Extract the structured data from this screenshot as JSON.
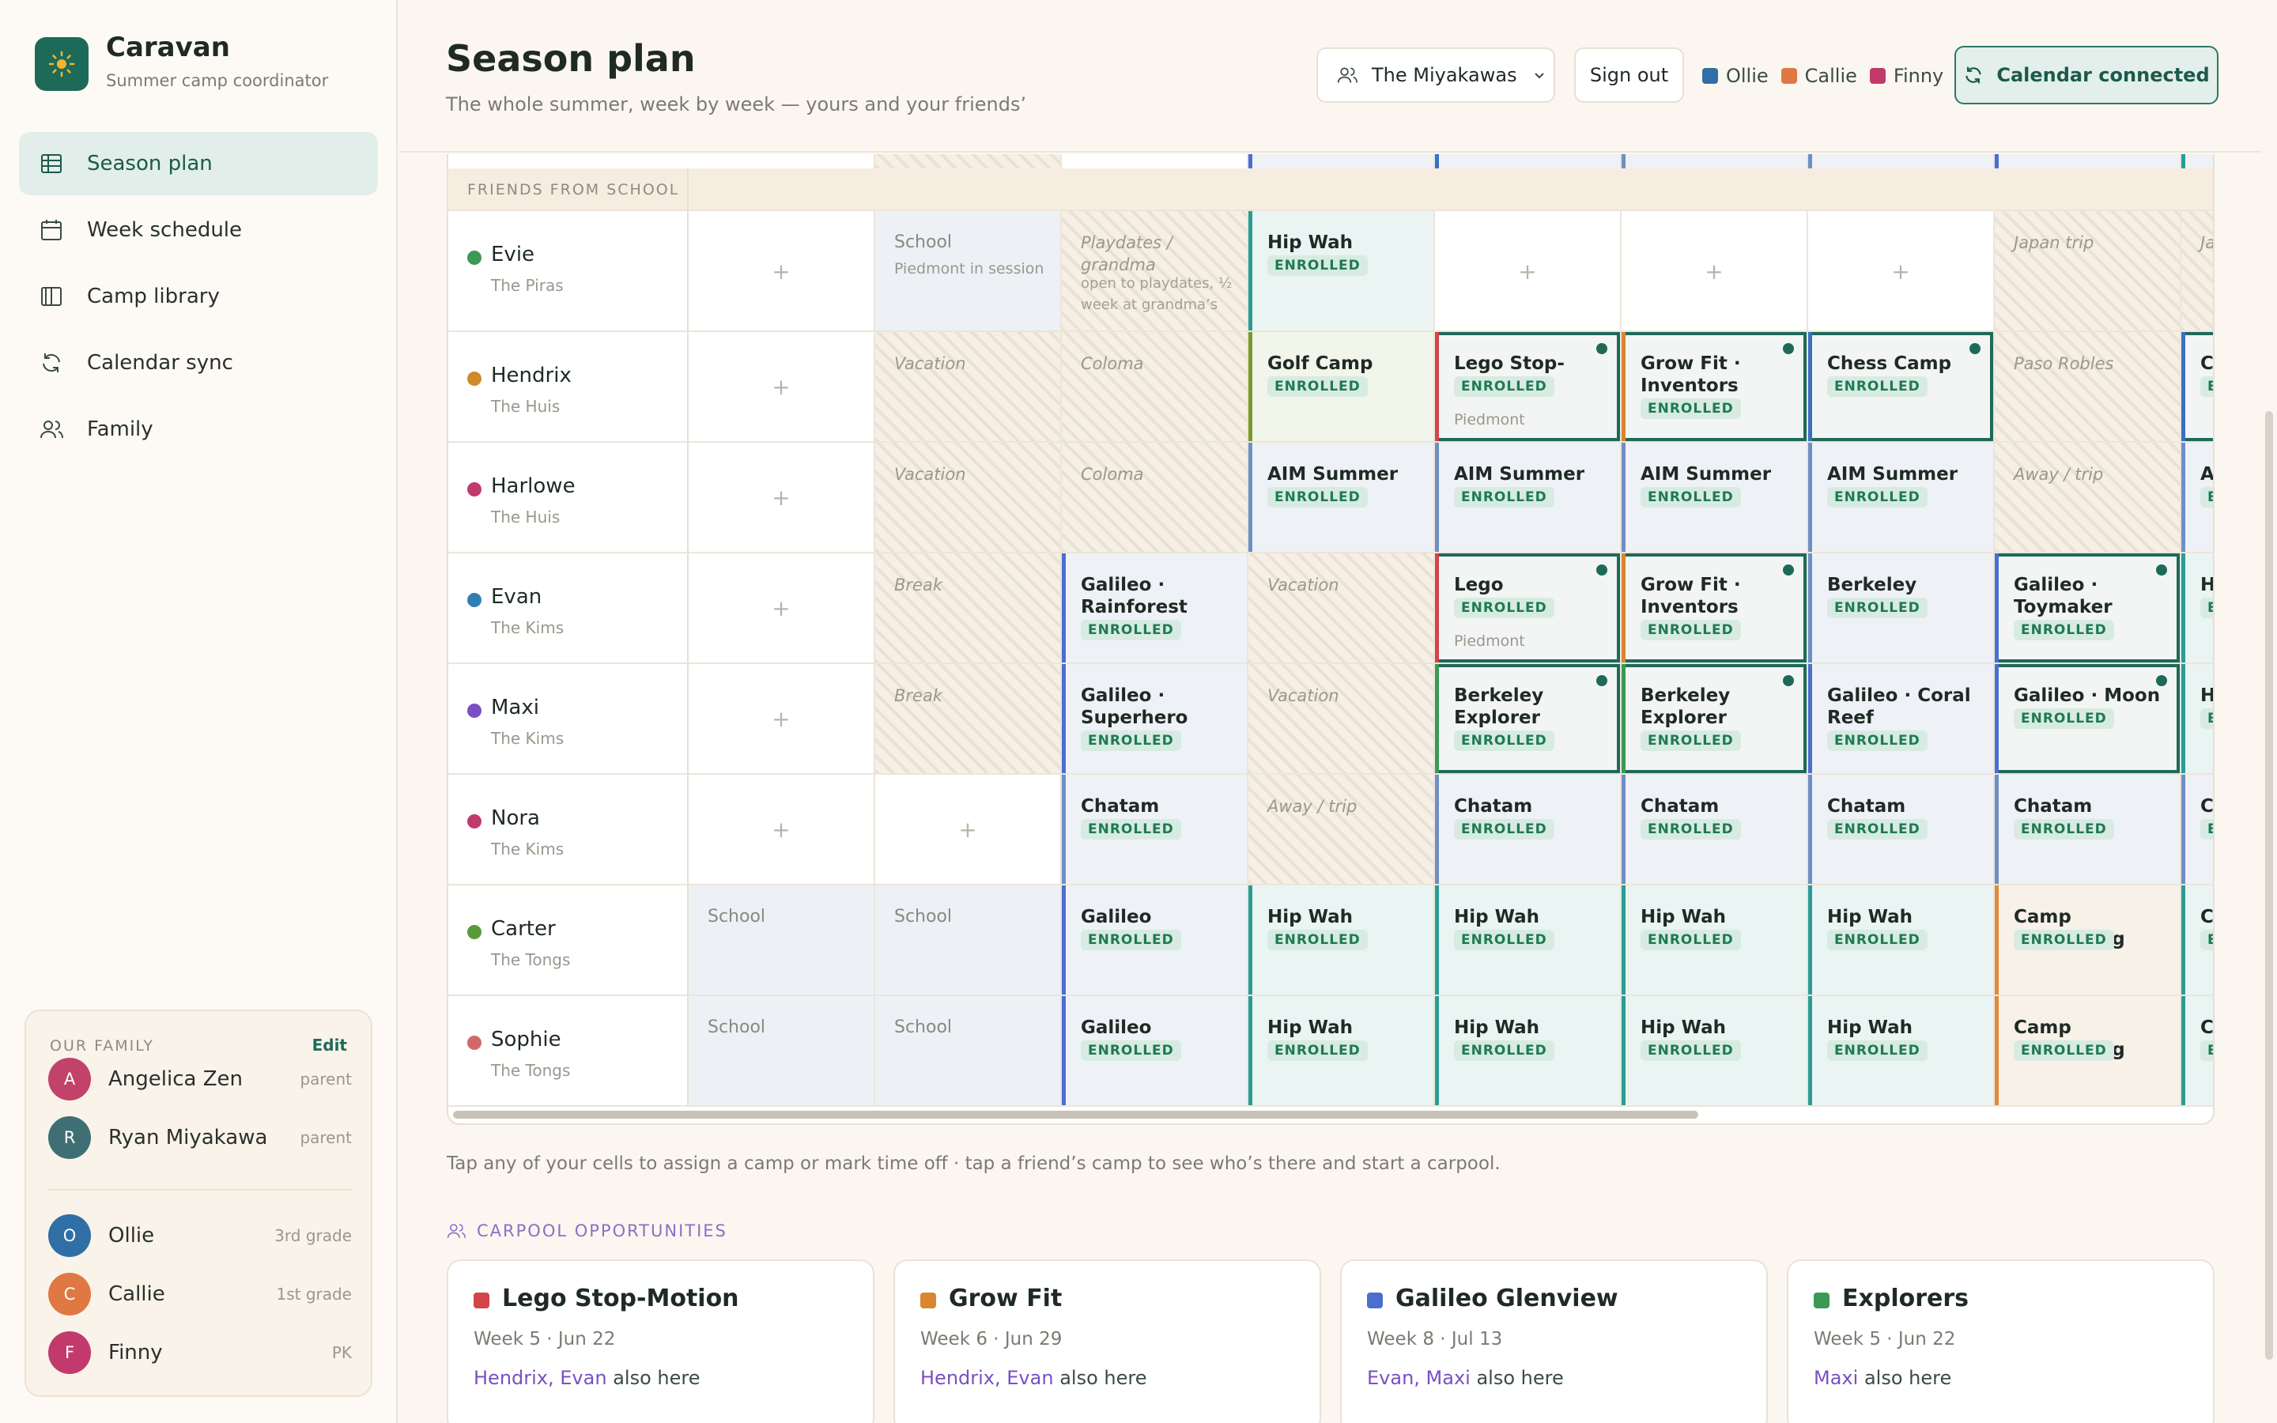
{
  "app": {
    "name": "Caravan",
    "subtitle": "Summer camp coordinator"
  },
  "nav": [
    {
      "label": "Season plan",
      "icon": "grid-icon",
      "active": true
    },
    {
      "label": "Week schedule",
      "icon": "calendar-icon",
      "active": false
    },
    {
      "label": "Camp library",
      "icon": "book-icon",
      "active": false
    },
    {
      "label": "Calendar sync",
      "icon": "sync-icon",
      "active": false
    },
    {
      "label": "Family",
      "icon": "users-icon",
      "active": false
    }
  ],
  "family": {
    "title": "OUR FAMILY",
    "edit_label": "Edit",
    "parents": [
      {
        "initial": "A",
        "name": "Angelica Zen",
        "role": "parent",
        "color": "#c2426a"
      },
      {
        "initial": "R",
        "name": "Ryan Miyakawa",
        "role": "parent",
        "color": "#3f6f74"
      }
    ],
    "kids": [
      {
        "initial": "O",
        "name": "Ollie",
        "role": "3rd grade",
        "color": "#2f6fa6"
      },
      {
        "initial": "C",
        "name": "Callie",
        "role": "1st grade",
        "color": "#e07843"
      },
      {
        "initial": "F",
        "name": "Finny",
        "role": "PK",
        "color": "#c23a6c"
      }
    ]
  },
  "header": {
    "title": "Season plan",
    "subtitle": "The whole summer, week by week — yours and your friends’",
    "family_select": "The Miyakawas",
    "sign_out": "Sign out",
    "legend": [
      {
        "name": "Ollie",
        "color": "#2f6fa6"
      },
      {
        "name": "Callie",
        "color": "#e07843"
      },
      {
        "name": "Finny",
        "color": "#c23a6c"
      }
    ],
    "calendar_button": "Calendar connected"
  },
  "grid": {
    "group_label": "FRIENDS FROM SCHOOL",
    "rows": [
      {
        "name": "Evie",
        "family": "The Piras",
        "color": "#3a9a55",
        "cells": [
          {
            "t": "empty"
          },
          {
            "t": "school",
            "title": "School",
            "note": "Piedmont in session"
          },
          {
            "t": "off",
            "title": "Playdates / grandma",
            "note": "open to playdates, ½ week at grandma’s"
          },
          {
            "t": "camp",
            "title": "Hip Wah",
            "badge": "ENROLLED",
            "accent": "#2a9c96",
            "bg": "#eaf4f3"
          },
          {
            "t": "empty"
          },
          {
            "t": "empty"
          },
          {
            "t": "empty"
          },
          {
            "t": "off",
            "title": "Japan trip"
          },
          {
            "t": "off",
            "title": "Japan trip"
          }
        ]
      },
      {
        "name": "Hendrix",
        "family": "The Huis",
        "color": "#d08a2a",
        "cells": [
          {
            "t": "empty"
          },
          {
            "t": "off",
            "title": "Vacation"
          },
          {
            "t": "off",
            "title": "Coloma"
          },
          {
            "t": "camp",
            "title": "Golf Camp",
            "badge": "ENROLLED",
            "accent": "#7a9a2a",
            "bg": "#f1f5ea"
          },
          {
            "t": "camp",
            "title": "Lego Stop-Motion",
            "badge": "ENROLLED",
            "accent": "#d2444a",
            "bg": "#f2f5f3",
            "note": "Piedmont",
            "mine": true
          },
          {
            "t": "camp",
            "title": "Grow Fit · Inventors",
            "badge": "ENROLLED",
            "accent": "#d9862e",
            "bg": "#f2f5f3",
            "mine": true
          },
          {
            "t": "camp",
            "title": "Chess Camp",
            "badge": "ENROLLED",
            "accent": "#3b6fc4",
            "bg": "#f2f5f3",
            "mine": true
          },
          {
            "t": "off",
            "title": "Paso Robles"
          },
          {
            "t": "camp",
            "title": "Camp",
            "badge": "ENROLLED",
            "accent": "#3b6fc4",
            "bg": "#f2f5f3",
            "mine": true
          }
        ]
      },
      {
        "name": "Harlowe",
        "family": "The Huis",
        "color": "#c23a6c",
        "cells": [
          {
            "t": "empty"
          },
          {
            "t": "off",
            "title": "Vacation"
          },
          {
            "t": "off",
            "title": "Coloma"
          },
          {
            "t": "camp",
            "title": "AIM Summer Camp",
            "badge": "ENROLLED",
            "accent": "#6e8fc4",
            "bg": "#eef2f6"
          },
          {
            "t": "camp",
            "title": "AIM Summer Camp",
            "badge": "ENROLLED",
            "accent": "#6e8fc4",
            "bg": "#eef2f6"
          },
          {
            "t": "camp",
            "title": "AIM Summer Camp",
            "badge": "ENROLLED",
            "accent": "#6e8fc4",
            "bg": "#eef2f6"
          },
          {
            "t": "camp",
            "title": "AIM Summer Camp",
            "badge": "ENROLLED",
            "accent": "#6e8fc4",
            "bg": "#eef2f6"
          },
          {
            "t": "off",
            "title": "Away / trip"
          },
          {
            "t": "camp",
            "title": "AIM Summer Camp",
            "badge": "ENROLLED",
            "accent": "#6e8fc4",
            "bg": "#eef2f6"
          }
        ]
      },
      {
        "name": "Evan",
        "family": "The Kims",
        "color": "#2f7fb6",
        "cells": [
          {
            "t": "empty"
          },
          {
            "t": "off",
            "title": "Break"
          },
          {
            "t": "camp",
            "title": "Galileo · Rainforest",
            "badge": "ENROLLED",
            "accent": "#4b6fd0",
            "bg": "#eef2f6"
          },
          {
            "t": "off",
            "title": "Vacation"
          },
          {
            "t": "camp",
            "title": "Lego",
            "badge": "ENROLLED",
            "accent": "#d2444a",
            "bg": "#f2f5f3",
            "note": "Piedmont",
            "mine": true
          },
          {
            "t": "camp",
            "title": "Grow Fit · Inventors",
            "badge": "ENROLLED",
            "accent": "#d9862e",
            "bg": "#f2f5f3",
            "mine": true
          },
          {
            "t": "camp",
            "title": "Berkeley Chess",
            "badge": "ENROLLED",
            "accent": "#6e8fc4",
            "bg": "#eef2f6"
          },
          {
            "t": "camp",
            "title": "Galileo · Toymaker",
            "badge": "ENROLLED",
            "accent": "#4b6fd0",
            "bg": "#f2f5f3",
            "mine": true
          },
          {
            "t": "camp",
            "title": "Hip Wah",
            "badge": "ENROLLED",
            "accent": "#2a9c96",
            "bg": "#eaf4f3"
          }
        ]
      },
      {
        "name": "Maxi",
        "family": "The Kims",
        "color": "#7a4fc4",
        "cells": [
          {
            "t": "empty"
          },
          {
            "t": "off",
            "title": "Break"
          },
          {
            "t": "camp",
            "title": "Galileo · Superhero",
            "badge": "ENROLLED",
            "accent": "#4b6fd0",
            "bg": "#eef2f6"
          },
          {
            "t": "off",
            "title": "Vacation"
          },
          {
            "t": "camp",
            "title": "Berkeley Explorer",
            "badge": "ENROLLED",
            "accent": "#3a9a55",
            "bg": "#f2f5f3",
            "mine": true
          },
          {
            "t": "camp",
            "title": "Berkeley Explorer",
            "badge": "ENROLLED",
            "accent": "#3a9a55",
            "bg": "#f2f5f3",
            "mine": true
          },
          {
            "t": "camp",
            "title": "Galileo · Coral Reef",
            "badge": "ENROLLED",
            "accent": "#4b6fd0",
            "bg": "#eef2f6"
          },
          {
            "t": "camp",
            "title": "Galileo · Moon",
            "badge": "ENROLLED",
            "accent": "#4b6fd0",
            "bg": "#f2f5f3",
            "mine": true
          },
          {
            "t": "camp",
            "title": "Hip Wah",
            "badge": "ENROLLED",
            "accent": "#2a9c96",
            "bg": "#eaf4f3"
          }
        ]
      },
      {
        "name": "Nora",
        "family": "The Kims",
        "color": "#c23a6c",
        "cells": [
          {
            "t": "empty"
          },
          {
            "t": "empty"
          },
          {
            "t": "camp",
            "title": "Chatam",
            "badge": "ENROLLED",
            "accent": "#6e8fc4",
            "bg": "#eef2f6"
          },
          {
            "t": "off",
            "title": "Away / trip"
          },
          {
            "t": "camp",
            "title": "Chatam",
            "badge": "ENROLLED",
            "accent": "#6e8fc4",
            "bg": "#eef2f6"
          },
          {
            "t": "camp",
            "title": "Chatam",
            "badge": "ENROLLED",
            "accent": "#6e8fc4",
            "bg": "#eef2f6"
          },
          {
            "t": "camp",
            "title": "Chatam",
            "badge": "ENROLLED",
            "accent": "#6e8fc4",
            "bg": "#eef2f6"
          },
          {
            "t": "camp",
            "title": "Chatam",
            "badge": "ENROLLED",
            "accent": "#6e8fc4",
            "bg": "#eef2f6"
          },
          {
            "t": "camp",
            "title": "Chatam",
            "badge": "ENROLLED",
            "accent": "#6e8fc4",
            "bg": "#eef2f6"
          }
        ]
      },
      {
        "name": "Carter",
        "family": "The Tongs",
        "color": "#5a9a3a",
        "cells": [
          {
            "t": "school",
            "title": "School"
          },
          {
            "t": "school",
            "title": "School"
          },
          {
            "t": "camp",
            "title": "Galileo Glenview",
            "badge": "ENROLLED",
            "accent": "#4b6fd0",
            "bg": "#eef2f6"
          },
          {
            "t": "camp",
            "title": "Hip Wah",
            "badge": "ENROLLED",
            "accent": "#2a9c96",
            "bg": "#eaf4f3"
          },
          {
            "t": "camp",
            "title": "Hip Wah",
            "badge": "ENROLLED",
            "accent": "#2a9c96",
            "bg": "#eaf4f3"
          },
          {
            "t": "camp",
            "title": "Hip Wah",
            "badge": "ENROLLED",
            "accent": "#2a9c96",
            "bg": "#eaf4f3"
          },
          {
            "t": "camp",
            "title": "Hip Wah",
            "badge": "ENROLLED",
            "accent": "#2a9c96",
            "bg": "#eaf4f3"
          },
          {
            "t": "camp",
            "title": "Camp Everything",
            "badge": "ENROLLED",
            "accent": "#e08a3a",
            "bg": "#f7f1e8"
          },
          {
            "t": "camp",
            "title": "Camp Everything",
            "badge": "ENROLLED",
            "accent": "#2a9c96",
            "bg": "#eaf4f3"
          }
        ]
      },
      {
        "name": "Sophie",
        "family": "The Tongs",
        "color": "#d06a6a",
        "cells": [
          {
            "t": "school",
            "title": "School"
          },
          {
            "t": "school",
            "title": "School"
          },
          {
            "t": "camp",
            "title": "Galileo Glenview",
            "badge": "ENROLLED",
            "accent": "#4b6fd0",
            "bg": "#eef2f6"
          },
          {
            "t": "camp",
            "title": "Hip Wah",
            "badge": "ENROLLED",
            "accent": "#2a9c96",
            "bg": "#eaf4f3"
          },
          {
            "t": "camp",
            "title": "Hip Wah",
            "badge": "ENROLLED",
            "accent": "#2a9c96",
            "bg": "#eaf4f3"
          },
          {
            "t": "camp",
            "title": "Hip Wah",
            "badge": "ENROLLED",
            "accent": "#2a9c96",
            "bg": "#eaf4f3"
          },
          {
            "t": "camp",
            "title": "Hip Wah",
            "badge": "ENROLLED",
            "accent": "#2a9c96",
            "bg": "#eaf4f3"
          },
          {
            "t": "camp",
            "title": "Camp Everything",
            "badge": "ENROLLED",
            "accent": "#e08a3a",
            "bg": "#f7f1e8"
          },
          {
            "t": "camp",
            "title": "Camp Everything",
            "badge": "ENROLLED",
            "accent": "#2a9c96",
            "bg": "#eaf4f3"
          }
        ]
      }
    ]
  },
  "hint": "Tap any of your cells to assign a camp or mark time off · tap a friend’s camp to see who’s there and start a carpool.",
  "carpool": {
    "title": "CARPOOL OPPORTUNITIES",
    "suffix": "also here",
    "cards": [
      {
        "title": "Lego Stop-Motion",
        "week": "Week 5 · Jun 22",
        "friends": "Hendrix, Evan",
        "color": "#d2444a"
      },
      {
        "title": "Grow Fit",
        "week": "Week 6 · Jun 29",
        "friends": "Hendrix, Evan",
        "color": "#d9862e"
      },
      {
        "title": "Galileo Glenview",
        "week": "Week 8 · Jul 13",
        "friends": "Evan, Maxi",
        "color": "#4b6fd0"
      },
      {
        "title": "Explorers",
        "week": "Week 5 · Jun 22",
        "friends": "Maxi",
        "color": "#3a9a55"
      }
    ]
  }
}
